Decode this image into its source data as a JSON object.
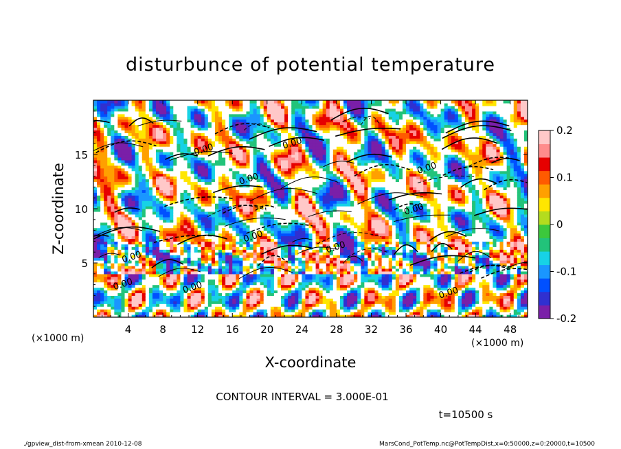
{
  "chart_data": {
    "type": "heatmap",
    "title": "disturbunce of potential temperature",
    "xlabel": "X-coordinate",
    "ylabel": "Z-coordinate",
    "x_unit_left": "(×1000 m)",
    "x_unit_right": "(×1000 m)",
    "xlim": [
      0,
      50
    ],
    "ylim": [
      0,
      20
    ],
    "x_ticks": [
      4,
      8,
      12,
      16,
      20,
      24,
      28,
      32,
      36,
      40,
      44,
      48
    ],
    "y_ticks": [
      5,
      10,
      15
    ],
    "colorbar": {
      "range": [
        -0.2,
        0.2
      ],
      "ticks": [
        {
          "value": 0.2,
          "label": "0.2"
        },
        {
          "value": 0.1,
          "label": "0.1"
        },
        {
          "value": 0,
          "label": "0"
        },
        {
          "value": -0.1,
          "label": "-0.1"
        },
        {
          "value": -0.2,
          "label": "-0.2"
        }
      ]
    },
    "contour_interval_text": "CONTOUR INTERVAL = 3.000E-01",
    "time_text": "t=10500 s",
    "contour_labels": [
      {
        "x": 12.8,
        "z": 15.2,
        "text": "0.00"
      },
      {
        "x": 23.0,
        "z": 15.8,
        "text": "0.00"
      },
      {
        "x": 18.0,
        "z": 12.5,
        "text": "0.00"
      },
      {
        "x": 38.5,
        "z": 13.5,
        "text": "0.00"
      },
      {
        "x": 37.0,
        "z": 9.7,
        "text": "0.00"
      },
      {
        "x": 18.5,
        "z": 7.2,
        "text": "0.00"
      },
      {
        "x": 4.5,
        "z": 5.3,
        "text": "0.00"
      },
      {
        "x": 28.0,
        "z": 6.2,
        "text": "0.00"
      },
      {
        "x": 3.5,
        "z": 2.8,
        "text": "0.00"
      },
      {
        "x": 11.5,
        "z": 2.5,
        "text": "0.00"
      },
      {
        "x": 41.0,
        "z": 2.0,
        "text": "0.00"
      }
    ]
  },
  "footer": {
    "left": "./gpview_dist-from-xmean  2010-12-08",
    "right": "MarsCond_PotTemp.nc@PotTempDist,x=0:50000,z=0:20000,t=10500"
  },
  "colors": {
    "palette": [
      "#7a1fa8",
      "#3030d0",
      "#0050ff",
      "#1a96ff",
      "#17d2e6",
      "#22c37a",
      "#3cc83c",
      "#b4dc1e",
      "#ffe600",
      "#ffa000",
      "#ff5a00",
      "#e60000",
      "#ff8c8c",
      "#ffc8c8"
    ],
    "frame": "#000000"
  }
}
